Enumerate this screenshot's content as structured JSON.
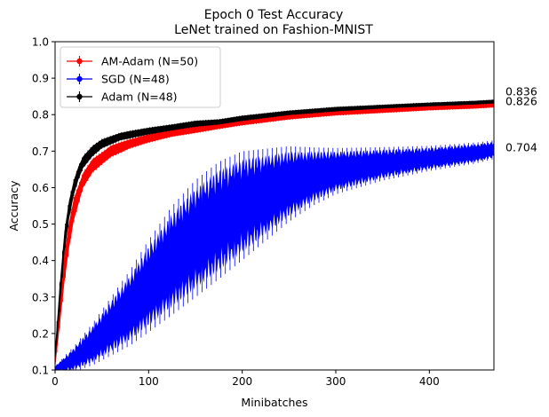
{
  "chart_data": {
    "type": "line",
    "title": "Epoch 0 Test Accuracy",
    "subtitle": "LeNet trained on Fashion-MNIST",
    "xlabel": "Minibatches",
    "ylabel": "Accuracy",
    "xlim": [
      0,
      469
    ],
    "ylim": [
      0.1,
      1.0
    ],
    "xticks": [
      0,
      100,
      200,
      300,
      400
    ],
    "yticks": [
      0.1,
      0.2,
      0.3,
      0.4,
      0.5,
      0.6,
      0.7,
      0.8,
      0.9,
      1.0
    ],
    "grid": false,
    "legend_position": "top-left",
    "series": [
      {
        "name": "AM-Adam (N=50)",
        "color": "#ff0000",
        "final_label": "0.826",
        "x": [
          0,
          5,
          10,
          15,
          20,
          25,
          30,
          40,
          50,
          60,
          70,
          80,
          100,
          125,
          150,
          175,
          200,
          250,
          300,
          350,
          400,
          450,
          469
        ],
        "y": [
          0.12,
          0.25,
          0.38,
          0.47,
          0.54,
          0.58,
          0.62,
          0.66,
          0.68,
          0.7,
          0.71,
          0.72,
          0.735,
          0.75,
          0.76,
          0.77,
          0.78,
          0.795,
          0.805,
          0.812,
          0.818,
          0.823,
          0.826
        ],
        "err": [
          0.015,
          0.03,
          0.04,
          0.035,
          0.03,
          0.025,
          0.02,
          0.018,
          0.016,
          0.015,
          0.014,
          0.012,
          0.011,
          0.01,
          0.01,
          0.009,
          0.009,
          0.008,
          0.007,
          0.007,
          0.006,
          0.006,
          0.006
        ]
      },
      {
        "name": "SGD (N=48)",
        "color": "#0000ff",
        "final_label": "0.704",
        "x": [
          0,
          10,
          20,
          40,
          60,
          80,
          100,
          125,
          150,
          175,
          200,
          225,
          250,
          275,
          300,
          350,
          400,
          450,
          469
        ],
        "y": [
          0.105,
          0.115,
          0.13,
          0.17,
          0.22,
          0.27,
          0.33,
          0.4,
          0.46,
          0.51,
          0.55,
          0.58,
          0.61,
          0.63,
          0.645,
          0.665,
          0.68,
          0.695,
          0.704
        ],
        "err": [
          0.005,
          0.02,
          0.03,
          0.05,
          0.07,
          0.09,
          0.11,
          0.13,
          0.14,
          0.14,
          0.13,
          0.11,
          0.09,
          0.07,
          0.055,
          0.04,
          0.03,
          0.025,
          0.022
        ]
      },
      {
        "name": "Adam (N=48)",
        "color": "#000000",
        "final_label": "0.836",
        "x": [
          0,
          5,
          10,
          15,
          20,
          25,
          30,
          40,
          50,
          60,
          70,
          80,
          100,
          125,
          150,
          175,
          200,
          250,
          300,
          350,
          400,
          450,
          469
        ],
        "y": [
          0.14,
          0.3,
          0.45,
          0.54,
          0.6,
          0.64,
          0.67,
          0.7,
          0.72,
          0.73,
          0.74,
          0.745,
          0.755,
          0.765,
          0.775,
          0.78,
          0.79,
          0.805,
          0.815,
          0.822,
          0.828,
          0.833,
          0.836
        ],
        "err": [
          0.02,
          0.035,
          0.03,
          0.025,
          0.02,
          0.018,
          0.016,
          0.014,
          0.012,
          0.011,
          0.01,
          0.01,
          0.009,
          0.008,
          0.008,
          0.007,
          0.007,
          0.006,
          0.006,
          0.005,
          0.005,
          0.005,
          0.005
        ]
      }
    ]
  }
}
